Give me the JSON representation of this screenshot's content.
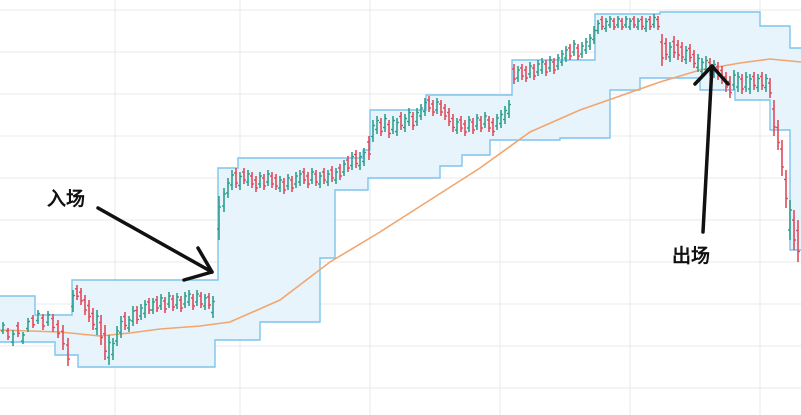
{
  "chart_data": {
    "type": "line",
    "title": "",
    "xlabel": "",
    "ylabel": "",
    "grid": true,
    "ylim": [
      0,
      415
    ],
    "colors": {
      "channel": "#7ec4ee",
      "channel_fill": "#e4f3fc",
      "moving_average": "#f2a66e",
      "up": "#2e9e8c",
      "down": "#e0495a",
      "arrow": "#111111",
      "grid": "#e6e8ec"
    },
    "series": [
      {
        "role": "channel-upper",
        "points": [
          [
            0,
            296
          ],
          [
            35,
            296
          ],
          [
            35,
            315
          ],
          [
            72,
            315
          ],
          [
            72,
            280
          ],
          [
            218,
            280
          ],
          [
            218,
            168
          ],
          [
            238,
            168
          ],
          [
            238,
            158
          ],
          [
            363,
            158
          ],
          [
            363,
            150
          ],
          [
            370,
            150
          ],
          [
            370,
            110
          ],
          [
            426,
            110
          ],
          [
            426,
            95
          ],
          [
            512,
            95
          ],
          [
            512,
            60
          ],
          [
            595,
            60
          ],
          [
            595,
            14
          ],
          [
            660,
            14
          ],
          [
            660,
            12
          ],
          [
            760,
            12
          ],
          [
            760,
            26
          ],
          [
            790,
            26
          ],
          [
            790,
            48
          ],
          [
            801,
            48
          ]
        ]
      },
      {
        "role": "channel-lower",
        "points": [
          [
            0,
            342
          ],
          [
            55,
            342
          ],
          [
            55,
            355
          ],
          [
            78,
            355
          ],
          [
            78,
            367
          ],
          [
            215,
            367
          ],
          [
            215,
            340
          ],
          [
            260,
            340
          ],
          [
            260,
            322
          ],
          [
            320,
            322
          ],
          [
            320,
            258
          ],
          [
            335,
            258
          ],
          [
            335,
            190
          ],
          [
            368,
            190
          ],
          [
            368,
            178
          ],
          [
            440,
            178
          ],
          [
            440,
            166
          ],
          [
            462,
            166
          ],
          [
            462,
            155
          ],
          [
            490,
            155
          ],
          [
            490,
            140
          ],
          [
            560,
            140
          ],
          [
            560,
            138
          ],
          [
            610,
            138
          ],
          [
            610,
            90
          ],
          [
            640,
            90
          ],
          [
            640,
            78
          ],
          [
            700,
            78
          ],
          [
            700,
            90
          ],
          [
            735,
            90
          ],
          [
            735,
            100
          ],
          [
            770,
            100
          ],
          [
            770,
            130
          ],
          [
            790,
            130
          ],
          [
            790,
            250
          ],
          [
            801,
            250
          ]
        ]
      },
      {
        "role": "moving-average",
        "points": [
          [
            0,
            330
          ],
          [
            60,
            332
          ],
          [
            100,
            336
          ],
          [
            130,
            333
          ],
          [
            160,
            329
          ],
          [
            200,
            326
          ],
          [
            230,
            322
          ],
          [
            280,
            300
          ],
          [
            330,
            262
          ],
          [
            380,
            232
          ],
          [
            430,
            200
          ],
          [
            480,
            168
          ],
          [
            530,
            132
          ],
          [
            580,
            110
          ],
          [
            620,
            96
          ],
          [
            660,
            82
          ],
          [
            700,
            70
          ],
          [
            740,
            63
          ],
          [
            770,
            59
          ],
          [
            801,
            62
          ]
        ]
      }
    ],
    "candles": [
      [
        3,
        322,
        334,
        true
      ],
      [
        8,
        328,
        340,
        false
      ],
      [
        13,
        330,
        346,
        true
      ],
      [
        18,
        322,
        337,
        false
      ],
      [
        23,
        332,
        344,
        true
      ],
      [
        28,
        318,
        332,
        true
      ],
      [
        33,
        315,
        328,
        false
      ],
      [
        38,
        310,
        324,
        true
      ],
      [
        43,
        314,
        330,
        false
      ],
      [
        48,
        311,
        326,
        true
      ],
      [
        53,
        314,
        332,
        false
      ],
      [
        58,
        320,
        338,
        false
      ],
      [
        63,
        325,
        350,
        false
      ],
      [
        68,
        338,
        366,
        false
      ],
      [
        73,
        290,
        312,
        true
      ],
      [
        77,
        285,
        300,
        false
      ],
      [
        81,
        288,
        305,
        false
      ],
      [
        85,
        295,
        315,
        false
      ],
      [
        89,
        300,
        322,
        false
      ],
      [
        93,
        308,
        330,
        false
      ],
      [
        97,
        310,
        335,
        true
      ],
      [
        101,
        315,
        345,
        false
      ],
      [
        105,
        325,
        360,
        false
      ],
      [
        109,
        335,
        365,
        true
      ],
      [
        113,
        338,
        360,
        true
      ],
      [
        117,
        326,
        346,
        true
      ],
      [
        121,
        316,
        338,
        true
      ],
      [
        125,
        312,
        330,
        false
      ],
      [
        129,
        316,
        332,
        true
      ],
      [
        133,
        306,
        326,
        true
      ],
      [
        137,
        306,
        324,
        false
      ],
      [
        141,
        304,
        320,
        true
      ],
      [
        145,
        300,
        318,
        true
      ],
      [
        149,
        298,
        314,
        false
      ],
      [
        153,
        298,
        314,
        true
      ],
      [
        157,
        296,
        312,
        false
      ],
      [
        161,
        294,
        310,
        true
      ],
      [
        165,
        297,
        313,
        false
      ],
      [
        169,
        292,
        308,
        true
      ],
      [
        173,
        295,
        311,
        false
      ],
      [
        177,
        293,
        309,
        true
      ],
      [
        181,
        296,
        312,
        false
      ],
      [
        185,
        292,
        308,
        true
      ],
      [
        189,
        290,
        306,
        true
      ],
      [
        193,
        294,
        310,
        false
      ],
      [
        197,
        290,
        306,
        true
      ],
      [
        201,
        292,
        308,
        false
      ],
      [
        205,
        294,
        310,
        true
      ],
      [
        209,
        293,
        309,
        false
      ],
      [
        213,
        296,
        318,
        true
      ],
      [
        219,
        196,
        240,
        true
      ],
      [
        224,
        188,
        212,
        true
      ],
      [
        228,
        178,
        198,
        true
      ],
      [
        232,
        170,
        190,
        true
      ],
      [
        236,
        168,
        188,
        false
      ],
      [
        240,
        172,
        190,
        true
      ],
      [
        244,
        168,
        184,
        false
      ],
      [
        248,
        170,
        186,
        true
      ],
      [
        252,
        172,
        188,
        false
      ],
      [
        256,
        176,
        192,
        false
      ],
      [
        260,
        172,
        188,
        true
      ],
      [
        264,
        174,
        190,
        false
      ],
      [
        268,
        170,
        186,
        true
      ],
      [
        272,
        172,
        188,
        false
      ],
      [
        276,
        174,
        190,
        false
      ],
      [
        280,
        176,
        192,
        true
      ],
      [
        284,
        178,
        194,
        false
      ],
      [
        288,
        174,
        190,
        true
      ],
      [
        292,
        176,
        192,
        false
      ],
      [
        296,
        172,
        188,
        true
      ],
      [
        300,
        170,
        186,
        true
      ],
      [
        304,
        168,
        184,
        false
      ],
      [
        308,
        172,
        188,
        false
      ],
      [
        312,
        168,
        184,
        true
      ],
      [
        316,
        170,
        186,
        false
      ],
      [
        320,
        172,
        188,
        true
      ],
      [
        324,
        168,
        184,
        false
      ],
      [
        328,
        170,
        186,
        true
      ],
      [
        332,
        166,
        182,
        false
      ],
      [
        336,
        168,
        184,
        true
      ],
      [
        340,
        164,
        180,
        false
      ],
      [
        344,
        160,
        176,
        true
      ],
      [
        348,
        156,
        172,
        false
      ],
      [
        352,
        152,
        170,
        true
      ],
      [
        356,
        150,
        168,
        false
      ],
      [
        360,
        152,
        170,
        true
      ],
      [
        364,
        148,
        166,
        true
      ],
      [
        369,
        136,
        160,
        false
      ],
      [
        373,
        120,
        142,
        true
      ],
      [
        377,
        116,
        134,
        true
      ],
      [
        381,
        118,
        136,
        false
      ],
      [
        385,
        114,
        132,
        true
      ],
      [
        389,
        120,
        138,
        false
      ],
      [
        393,
        116,
        134,
        true
      ],
      [
        397,
        118,
        136,
        true
      ],
      [
        401,
        112,
        130,
        false
      ],
      [
        405,
        114,
        132,
        true
      ],
      [
        409,
        108,
        126,
        true
      ],
      [
        413,
        112,
        130,
        false
      ],
      [
        417,
        108,
        126,
        true
      ],
      [
        421,
        104,
        120,
        true
      ],
      [
        425,
        98,
        116,
        true
      ],
      [
        429,
        96,
        112,
        false
      ],
      [
        433,
        100,
        116,
        false
      ],
      [
        437,
        98,
        114,
        true
      ],
      [
        441,
        100,
        116,
        false
      ],
      [
        445,
        104,
        120,
        false
      ],
      [
        449,
        108,
        126,
        false
      ],
      [
        453,
        114,
        132,
        false
      ],
      [
        457,
        118,
        134,
        true
      ],
      [
        461,
        116,
        132,
        false
      ],
      [
        465,
        120,
        136,
        false
      ],
      [
        469,
        116,
        132,
        true
      ],
      [
        473,
        118,
        134,
        false
      ],
      [
        477,
        114,
        130,
        true
      ],
      [
        481,
        116,
        132,
        false
      ],
      [
        485,
        112,
        128,
        true
      ],
      [
        489,
        116,
        132,
        false
      ],
      [
        493,
        118,
        136,
        false
      ],
      [
        497,
        114,
        130,
        true
      ],
      [
        501,
        110,
        128,
        true
      ],
      [
        505,
        106,
        124,
        true
      ],
      [
        509,
        100,
        118,
        true
      ],
      [
        514,
        64,
        84,
        false
      ],
      [
        518,
        66,
        82,
        true
      ],
      [
        522,
        64,
        80,
        false
      ],
      [
        526,
        66,
        82,
        false
      ],
      [
        530,
        62,
        78,
        true
      ],
      [
        534,
        64,
        80,
        false
      ],
      [
        538,
        60,
        76,
        true
      ],
      [
        542,
        58,
        74,
        true
      ],
      [
        546,
        60,
        76,
        false
      ],
      [
        550,
        56,
        72,
        true
      ],
      [
        554,
        58,
        74,
        false
      ],
      [
        558,
        54,
        70,
        true
      ],
      [
        562,
        50,
        66,
        true
      ],
      [
        566,
        46,
        62,
        true
      ],
      [
        570,
        44,
        60,
        false
      ],
      [
        574,
        40,
        56,
        true
      ],
      [
        578,
        44,
        60,
        false
      ],
      [
        582,
        42,
        58,
        true
      ],
      [
        586,
        38,
        54,
        true
      ],
      [
        590,
        34,
        50,
        true
      ],
      [
        594,
        26,
        44,
        true
      ],
      [
        598,
        20,
        34,
        true
      ],
      [
        602,
        16,
        30,
        false
      ],
      [
        606,
        18,
        32,
        true
      ],
      [
        610,
        16,
        28,
        true
      ],
      [
        614,
        18,
        30,
        false
      ],
      [
        618,
        16,
        28,
        true
      ],
      [
        622,
        18,
        30,
        false
      ],
      [
        626,
        16,
        28,
        true
      ],
      [
        630,
        18,
        30,
        true
      ],
      [
        634,
        16,
        28,
        false
      ],
      [
        638,
        18,
        30,
        true
      ],
      [
        642,
        16,
        30,
        false
      ],
      [
        646,
        18,
        32,
        true
      ],
      [
        650,
        16,
        30,
        false
      ],
      [
        654,
        14,
        28,
        true
      ],
      [
        658,
        16,
        30,
        false
      ],
      [
        662,
        34,
        66,
        false
      ],
      [
        666,
        38,
        60,
        false
      ],
      [
        670,
        42,
        62,
        true
      ],
      [
        674,
        36,
        58,
        false
      ],
      [
        678,
        40,
        60,
        false
      ],
      [
        682,
        42,
        62,
        false
      ],
      [
        686,
        46,
        64,
        true
      ],
      [
        690,
        44,
        62,
        false
      ],
      [
        694,
        50,
        68,
        false
      ],
      [
        698,
        54,
        72,
        true
      ],
      [
        702,
        58,
        76,
        true
      ],
      [
        706,
        56,
        74,
        true
      ],
      [
        710,
        58,
        76,
        false
      ],
      [
        714,
        60,
        78,
        true
      ],
      [
        718,
        62,
        80,
        false
      ],
      [
        722,
        66,
        84,
        false
      ],
      [
        726,
        72,
        92,
        false
      ],
      [
        730,
        76,
        98,
        false
      ],
      [
        734,
        70,
        90,
        true
      ],
      [
        738,
        72,
        92,
        true
      ],
      [
        742,
        74,
        94,
        false
      ],
      [
        746,
        72,
        92,
        true
      ],
      [
        750,
        74,
        94,
        true
      ],
      [
        754,
        72,
        90,
        false
      ],
      [
        758,
        74,
        92,
        true
      ],
      [
        762,
        72,
        90,
        false
      ],
      [
        766,
        74,
        92,
        true
      ],
      [
        770,
        78,
        98,
        false
      ],
      [
        774,
        100,
        136,
        false
      ],
      [
        778,
        120,
        150,
        false
      ],
      [
        782,
        140,
        176,
        false
      ],
      [
        786,
        170,
        208,
        false
      ],
      [
        790,
        200,
        240,
        true
      ],
      [
        794,
        210,
        250,
        false
      ],
      [
        798,
        220,
        262,
        false
      ]
    ],
    "annotations": [
      {
        "text": "入场",
        "type": "arrow-label"
      },
      {
        "text": "出场",
        "type": "arrow-label"
      }
    ]
  }
}
